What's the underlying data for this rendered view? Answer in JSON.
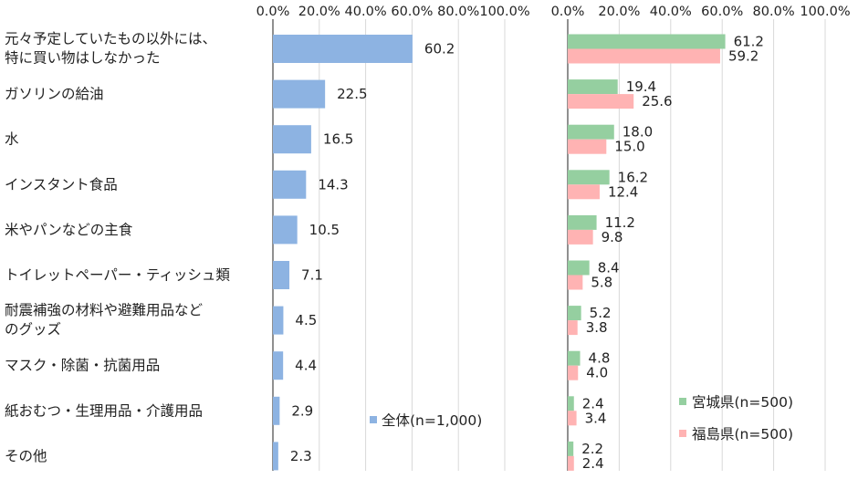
{
  "chart_data": [
    {
      "type": "bar",
      "orientation": "horizontal",
      "categories": [
        [
          "元々予定していたもの以外には、",
          "特に買い物はしなかった"
        ],
        [
          "ガソリンの給油"
        ],
        [
          "水"
        ],
        [
          "インスタント食品"
        ],
        [
          "米やパンなどの主食"
        ],
        [
          "トイレットペーパー・ティッシュ類"
        ],
        [
          "耐震補強の材料や避難用品など",
          "のグッズ"
        ],
        [
          "マスク・除菌・抗菌用品"
        ],
        [
          "紙おむつ・生理用品・介護用品"
        ],
        [
          "その他"
        ]
      ],
      "series": [
        {
          "name": "全体(n=1,000)",
          "color": "#8db3e2",
          "values": [
            60.2,
            22.5,
            16.5,
            14.3,
            10.5,
            7.1,
            4.5,
            4.4,
            2.9,
            2.3
          ]
        }
      ],
      "xlim": [
        0,
        100
      ],
      "ticks": [
        "0.0%",
        "20.0%",
        "40.0%",
        "60.0%",
        "80.0%",
        "100.0%"
      ],
      "grid": true,
      "legend": "bottom-right"
    },
    {
      "type": "bar",
      "orientation": "horizontal",
      "series": [
        {
          "name": "宮城県(n=500)",
          "color": "#95cfa0",
          "values": [
            61.2,
            19.4,
            18.0,
            16.2,
            11.2,
            8.4,
            5.2,
            4.8,
            2.4,
            2.2
          ]
        },
        {
          "name": "福島県(n=500)",
          "color": "#ffb3b3",
          "values": [
            59.2,
            25.6,
            15.0,
            12.4,
            9.8,
            5.8,
            3.8,
            4.0,
            3.4,
            2.4
          ]
        }
      ],
      "xlim": [
        0,
        100
      ],
      "ticks": [
        "0.0%",
        "20.0%",
        "40.0%",
        "60.0%",
        "80.0%",
        "100.0%"
      ],
      "grid": true,
      "legend": "bottom-right"
    }
  ]
}
